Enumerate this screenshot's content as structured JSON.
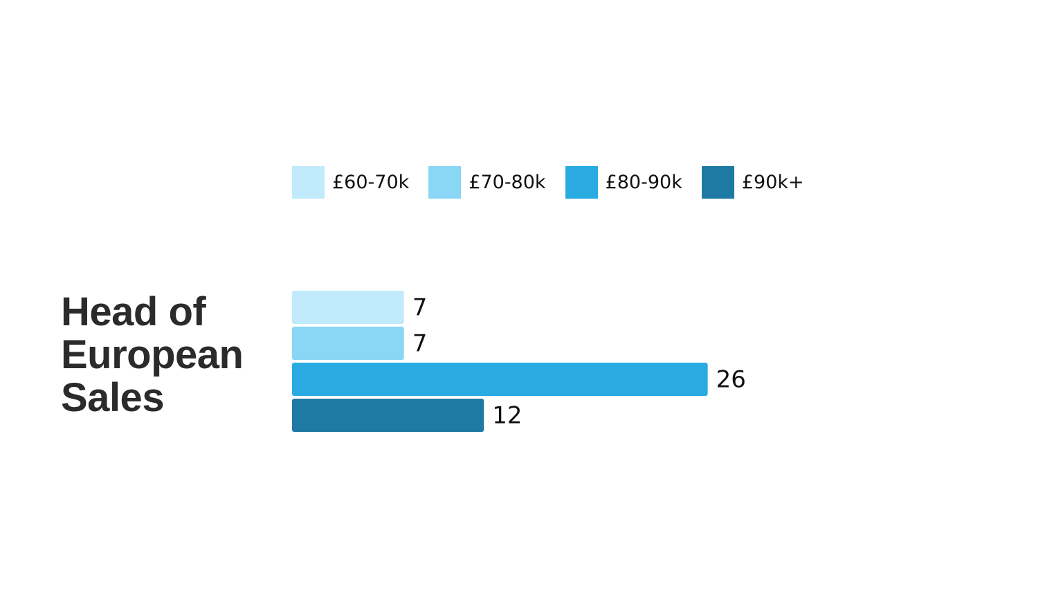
{
  "chart_data": {
    "type": "bar",
    "orientation": "horizontal",
    "categories": [
      "Head of European Sales"
    ],
    "series": [
      {
        "name": "£60-70k",
        "color": "#c1ebfc",
        "values": [
          7
        ]
      },
      {
        "name": "£70-80k",
        "color": "#8ad6f5",
        "values": [
          7
        ]
      },
      {
        "name": "£80-90k",
        "color": "#29aae1",
        "values": [
          26
        ]
      },
      {
        "name": "£90k+",
        "color": "#1e7aa3",
        "values": [
          12
        ]
      }
    ]
  }
}
